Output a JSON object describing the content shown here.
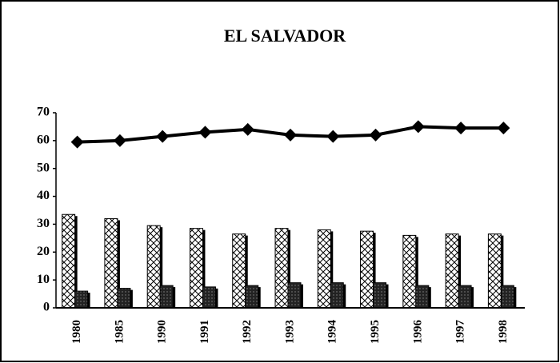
{
  "chart_data": {
    "type": "combo",
    "title": "EL SALVADOR",
    "categories": [
      "1980",
      "1985",
      "1990",
      "1991",
      "1992",
      "1993",
      "1994",
      "1995",
      "1996",
      "1997",
      "1998"
    ],
    "series": [
      {
        "type": "bar",
        "color": "#ffffff",
        "values": [
          33.5,
          32,
          29.5,
          28.5,
          26.5,
          28.5,
          28,
          27.5,
          26,
          26.5,
          26.5
        ]
      },
      {
        "type": "bar",
        "color": "#222222",
        "values": [
          6,
          7,
          8,
          7.5,
          8,
          9,
          9,
          9,
          8,
          8,
          8
        ]
      },
      {
        "type": "line",
        "color": "#000000",
        "values": [
          59.5,
          60,
          61.5,
          63,
          64,
          62,
          61.5,
          62,
          65,
          64.5,
          64.5
        ]
      }
    ],
    "ylim": [
      0,
      70
    ],
    "yticks": [
      0,
      10,
      20,
      30,
      40,
      50,
      60,
      70
    ],
    "grid": false
  }
}
